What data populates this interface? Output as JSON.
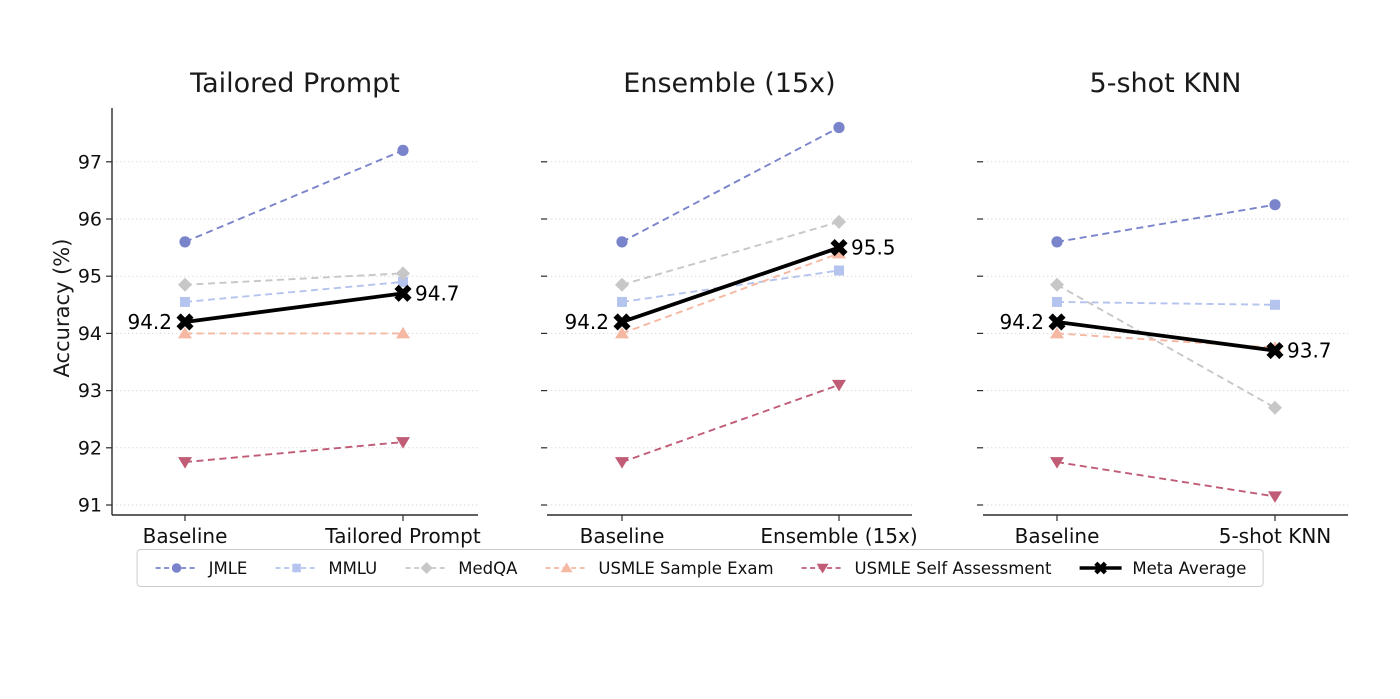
{
  "figure": {
    "background": "#ffffff"
  },
  "chart_data": {
    "type": "line",
    "ylabel": "Accuracy (%)",
    "ylim": [
      90.8,
      97.95
    ],
    "yticks": [
      91,
      92,
      93,
      94,
      95,
      96,
      97
    ],
    "grid": "horizontal-dotted",
    "legend_position": "bottom-center",
    "series_styles": [
      {
        "name": "JMLE",
        "color": "#7a84cb",
        "marker": "circle",
        "line": "dashed"
      },
      {
        "name": "MMLU",
        "color": "#b5c4ee",
        "marker": "square",
        "line": "dashed"
      },
      {
        "name": "MedQA",
        "color": "#c7c7c7",
        "marker": "diamond",
        "line": "dashed"
      },
      {
        "name": "USMLE Sample Exam",
        "color": "#f5b8a3",
        "marker": "triangle-up",
        "line": "dashed"
      },
      {
        "name": "USMLE Self Assessment",
        "color": "#c05c76",
        "marker": "triangle-down",
        "line": "dashed"
      },
      {
        "name": "Meta Average",
        "color": "#000000",
        "marker": "x",
        "line": "solid"
      }
    ],
    "panels": [
      {
        "title": "Tailored Prompt",
        "categories": [
          "Baseline",
          "Tailored Prompt"
        ],
        "show_y_tick_labels": true,
        "series": [
          {
            "name": "JMLE",
            "values": [
              95.6,
              97.2
            ]
          },
          {
            "name": "MMLU",
            "values": [
              94.55,
              94.9
            ]
          },
          {
            "name": "MedQA",
            "values": [
              94.85,
              95.05
            ]
          },
          {
            "name": "USMLE Sample Exam",
            "values": [
              94.0,
              94.0
            ]
          },
          {
            "name": "USMLE Self Assessment",
            "values": [
              91.75,
              92.1
            ]
          },
          {
            "name": "Meta Average",
            "values": [
              94.2,
              94.7
            ]
          }
        ],
        "annotations": [
          {
            "text": "94.2",
            "point": 0,
            "side": "left"
          },
          {
            "text": "94.7",
            "point": 1,
            "side": "right"
          }
        ]
      },
      {
        "title": "Ensemble (15x)",
        "categories": [
          "Baseline",
          "Ensemble (15x)"
        ],
        "show_y_tick_labels": false,
        "series": [
          {
            "name": "JMLE",
            "values": [
              95.6,
              97.6
            ]
          },
          {
            "name": "MMLU",
            "values": [
              94.55,
              95.1
            ]
          },
          {
            "name": "MedQA",
            "values": [
              94.85,
              95.95
            ]
          },
          {
            "name": "USMLE Sample Exam",
            "values": [
              94.0,
              95.4
            ]
          },
          {
            "name": "USMLE Self Assessment",
            "values": [
              91.75,
              93.1
            ]
          },
          {
            "name": "Meta Average",
            "values": [
              94.2,
              95.5
            ]
          }
        ],
        "annotations": [
          {
            "text": "94.2",
            "point": 0,
            "side": "left"
          },
          {
            "text": "95.5",
            "point": 1,
            "side": "right"
          }
        ]
      },
      {
        "title": "5-shot KNN",
        "categories": [
          "Baseline",
          "5-shot KNN"
        ],
        "show_y_tick_labels": false,
        "series": [
          {
            "name": "JMLE",
            "values": [
              95.6,
              96.25
            ]
          },
          {
            "name": "MMLU",
            "values": [
              94.55,
              94.5
            ]
          },
          {
            "name": "MedQA",
            "values": [
              94.85,
              92.7
            ]
          },
          {
            "name": "USMLE Sample Exam",
            "values": [
              94.0,
              93.75
            ]
          },
          {
            "name": "USMLE Self Assessment",
            "values": [
              91.75,
              91.15
            ]
          },
          {
            "name": "Meta Average",
            "values": [
              94.2,
              93.7
            ]
          }
        ],
        "annotations": [
          {
            "text": "94.2",
            "point": 0,
            "side": "left"
          },
          {
            "text": "93.7",
            "point": 1,
            "side": "right"
          }
        ]
      }
    ],
    "legend": [
      "JMLE",
      "MMLU",
      "MedQA",
      "USMLE Sample Exam",
      "USMLE Self Assessment",
      "Meta Average"
    ]
  }
}
